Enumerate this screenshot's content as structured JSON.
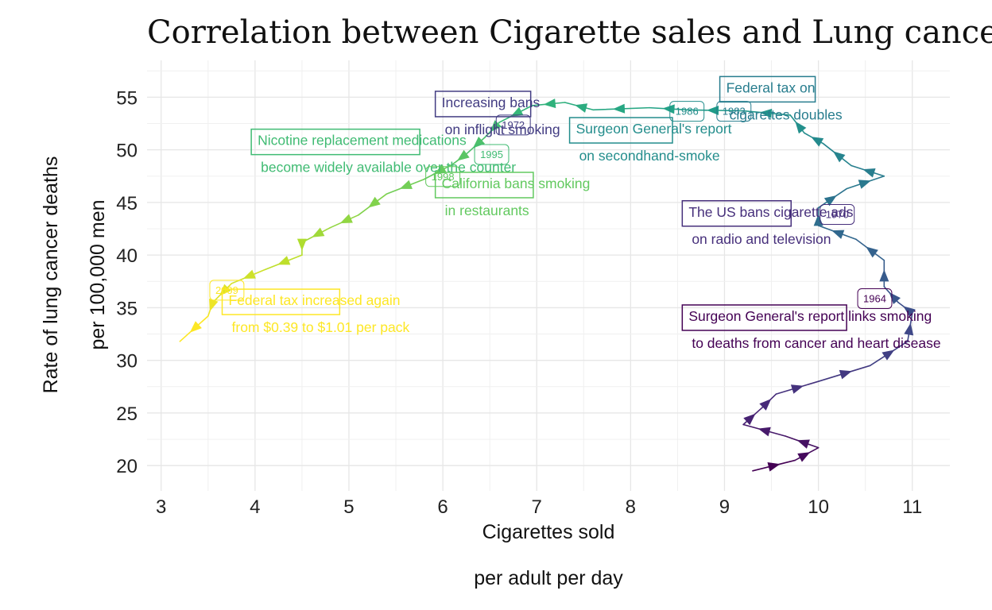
{
  "chart_data": {
    "type": "line",
    "title": "Correlation between Cigarette sales and Lung cancer mortality",
    "xlabel_line1": "Cigarettes sold",
    "xlabel_line2": "per adult per day",
    "ylabel_line1": "Rate of lung cancer deaths",
    "ylabel_line2": "per 100,000 men",
    "xlim": [
      2.85,
      11.4
    ],
    "ylim": [
      17.6,
      58.5
    ],
    "x_ticks": [
      3,
      4,
      5,
      6,
      7,
      8,
      9,
      10,
      11
    ],
    "y_ticks": [
      20,
      25,
      30,
      35,
      40,
      45,
      50,
      55
    ],
    "grid": true,
    "color_scale": "viridis",
    "series": [
      {
        "values": [
          {
            "x": 9.3,
            "y": 19.5
          },
          {
            "x": 9.75,
            "y": 20.5
          },
          {
            "x": 10.0,
            "y": 21.7
          },
          {
            "x": 9.65,
            "y": 22.8
          },
          {
            "x": 9.2,
            "y": 23.9
          },
          {
            "x": 9.4,
            "y": 25.5
          },
          {
            "x": 9.55,
            "y": 26.8
          },
          {
            "x": 10.0,
            "y": 28.0
          },
          {
            "x": 10.55,
            "y": 29.5
          },
          {
            "x": 10.95,
            "y": 31.8
          },
          {
            "x": 11.0,
            "y": 34.5
          },
          {
            "x": 10.85,
            "y": 35.5
          },
          {
            "x": 10.7,
            "y": 37.0
          },
          {
            "x": 10.7,
            "y": 39.5
          },
          {
            "x": 10.4,
            "y": 41.5
          },
          {
            "x": 10.0,
            "y": 42.8
          },
          {
            "x": 10.0,
            "y": 44.5
          },
          {
            "x": 10.3,
            "y": 46.3
          },
          {
            "x": 10.7,
            "y": 47.5
          },
          {
            "x": 10.35,
            "y": 48.5
          },
          {
            "x": 10.05,
            "y": 50.6
          },
          {
            "x": 9.85,
            "y": 51.6
          },
          {
            "x": 9.7,
            "y": 53.3
          },
          {
            "x": 9.2,
            "y": 53.7
          },
          {
            "x": 8.6,
            "y": 53.8
          },
          {
            "x": 8.2,
            "y": 54.0
          },
          {
            "x": 7.6,
            "y": 53.8
          },
          {
            "x": 7.3,
            "y": 54.5
          },
          {
            "x": 6.95,
            "y": 54.2
          },
          {
            "x": 6.6,
            "y": 52.6
          },
          {
            "x": 6.45,
            "y": 51.2
          },
          {
            "x": 6.25,
            "y": 49.6
          },
          {
            "x": 6.1,
            "y": 48.6
          },
          {
            "x": 5.8,
            "y": 47.2
          },
          {
            "x": 5.4,
            "y": 45.8
          },
          {
            "x": 5.1,
            "y": 43.8
          },
          {
            "x": 4.8,
            "y": 42.6
          },
          {
            "x": 4.5,
            "y": 41.2
          },
          {
            "x": 4.5,
            "y": 40.0
          },
          {
            "x": 4.1,
            "y": 38.6
          },
          {
            "x": 3.75,
            "y": 37.3
          },
          {
            "x": 3.55,
            "y": 35.5
          },
          {
            "x": 3.5,
            "y": 34.2
          },
          {
            "x": 3.2,
            "y": 31.8
          }
        ]
      }
    ],
    "annotations": [
      {
        "lines": [
          "Surgeon General's report links smoking",
          "to deaths from cancer and heart disease"
        ],
        "x": 8.55,
        "y": 33.3,
        "year": "1964",
        "year_x": 10.6,
        "year_y": 35.9
      },
      {
        "lines": [
          "The US bans cigarette ads",
          "on radio and television"
        ],
        "x": 8.55,
        "y": 43.2,
        "year": "1970",
        "year_x": 10.2,
        "year_y": 43.9
      },
      {
        "lines": [
          "Increasing bans",
          "on inflight smoking"
        ],
        "x": 5.92,
        "y": 53.6,
        "year": "1972",
        "year_x": 6.75,
        "year_y": 52.4
      },
      {
        "lines": [
          "Surgeon General's report",
          "on secondhand-smoke"
        ],
        "x": 7.35,
        "y": 51.1,
        "year": "1986",
        "year_x": 8.6,
        "year_y": 53.7
      },
      {
        "lines": [
          "Federal tax on",
          "cigarettes doubles"
        ],
        "x": 8.95,
        "y": 55.0,
        "year": "1983",
        "year_x": 9.1,
        "year_y": 53.7
      },
      {
        "lines": [
          "Nicotine replacement medications",
          "become widely available over the counter"
        ],
        "x": 3.96,
        "y": 50.0,
        "year": "1995",
        "year_x": 6.52,
        "year_y": 49.6
      },
      {
        "lines": [
          "California bans smoking",
          "in restaurants"
        ],
        "x": 5.92,
        "y": 45.9,
        "year": "1998",
        "year_x": 6.0,
        "year_y": 47.5
      },
      {
        "lines": [
          "Federal tax increased again",
          "from $0.39 to $1.01 per pack"
        ],
        "x": 3.65,
        "y": 34.8,
        "year": "2009",
        "year_x": 3.7,
        "year_y": 36.7
      }
    ]
  }
}
